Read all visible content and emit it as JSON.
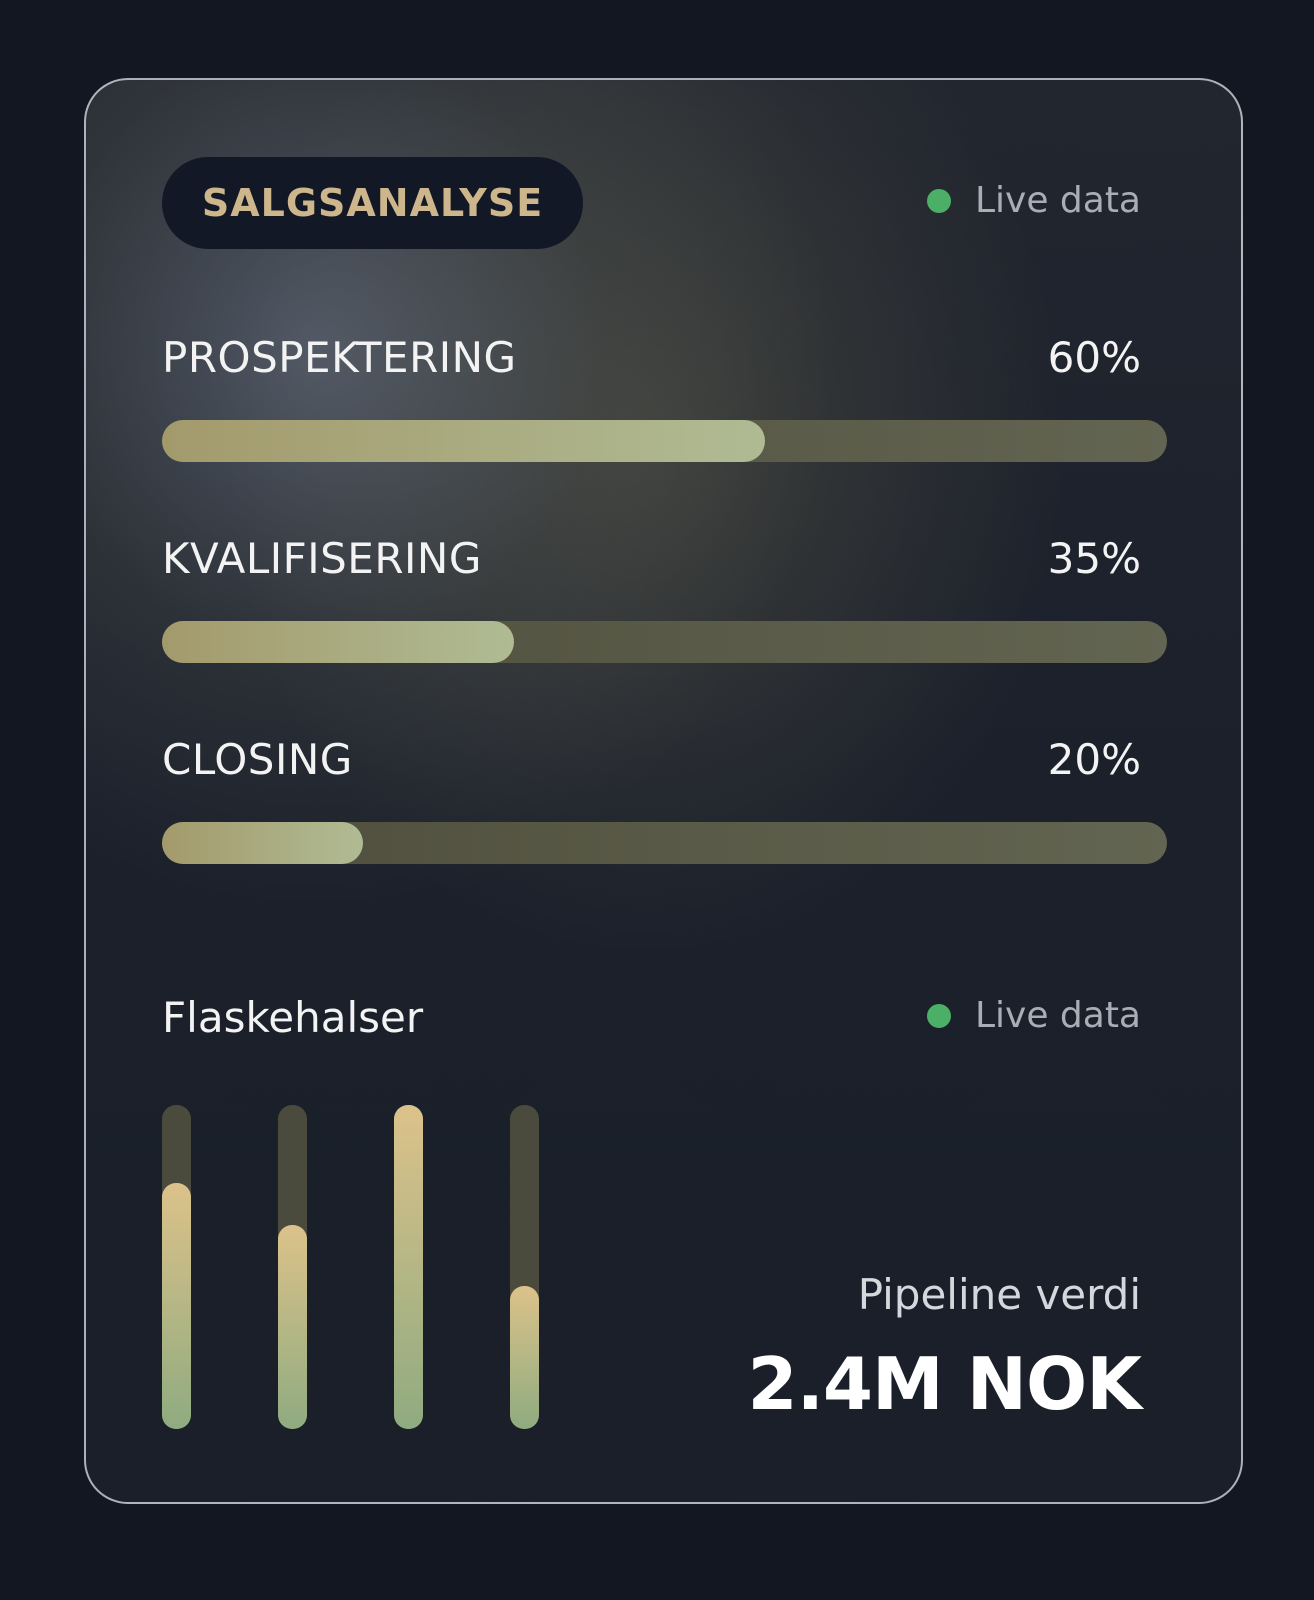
{
  "header": {
    "title": "SALGSANALYSE",
    "live_label": "Live data"
  },
  "colors": {
    "accent": "#cdb58c",
    "live_dot": "#4caf68",
    "bar_fill": "#b0bb93",
    "bar_track": "#5a5b48"
  },
  "stages": [
    {
      "label": "PROSPEKTERING",
      "value_text": "60%",
      "value": 60
    },
    {
      "label": "KVALIFISERING",
      "value_text": "35%",
      "value": 35
    },
    {
      "label": "CLOSING",
      "value_text": "20%",
      "value": 20
    }
  ],
  "bottlenecks": {
    "title": "Flaskehalser",
    "live_label": "Live data",
    "levels": [
      76,
      63,
      100,
      44
    ]
  },
  "pipeline": {
    "label": "Pipeline verdi",
    "value": "2.4M NOK"
  }
}
